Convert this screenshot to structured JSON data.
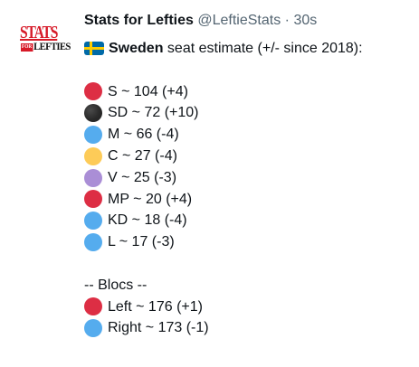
{
  "author": {
    "display_name": "Stats for Lefties",
    "handle": "@LeftieStats",
    "separator": "·",
    "timestamp": "30s",
    "avatar_top": "STATS",
    "avatar_for": "FOR",
    "avatar_bottom": "LEFTIES"
  },
  "tweet": {
    "country": "Sweden",
    "heading_rest": " seat estimate (+/- since 2018):",
    "parties": [
      {
        "color": "red",
        "text": "S ~ 104 (+4)"
      },
      {
        "color": "black",
        "text": "SD ~ 72 (+10)"
      },
      {
        "color": "blue",
        "text": "M ~ 66 (-4)"
      },
      {
        "color": "yellow",
        "text": "C ~ 27 (-4)"
      },
      {
        "color": "purple",
        "text": "V ~ 25 (-3)"
      },
      {
        "color": "red",
        "text": "MP ~ 20 (+4)"
      },
      {
        "color": "blue",
        "text": "KD ~ 18 (-4)"
      },
      {
        "color": "blue",
        "text": "L ~ 17 (-3)"
      }
    ],
    "blocs_heading": "-- Blocs --",
    "blocs": [
      {
        "color": "red",
        "text": "Left ~ 176 (+1)"
      },
      {
        "color": "blue",
        "text": "Right ~ 173 (-1)"
      }
    ]
  },
  "colors": {
    "red": "#dd2e44",
    "black": "#292f33",
    "blue": "#55acee",
    "yellow": "#fdcb58",
    "purple": "#aa8ed6",
    "secondary_text": "#536471",
    "primary_text": "#0f1419"
  },
  "icons": {
    "flag": "sweden-flag-icon",
    "circle": "colored-circle-icon"
  }
}
